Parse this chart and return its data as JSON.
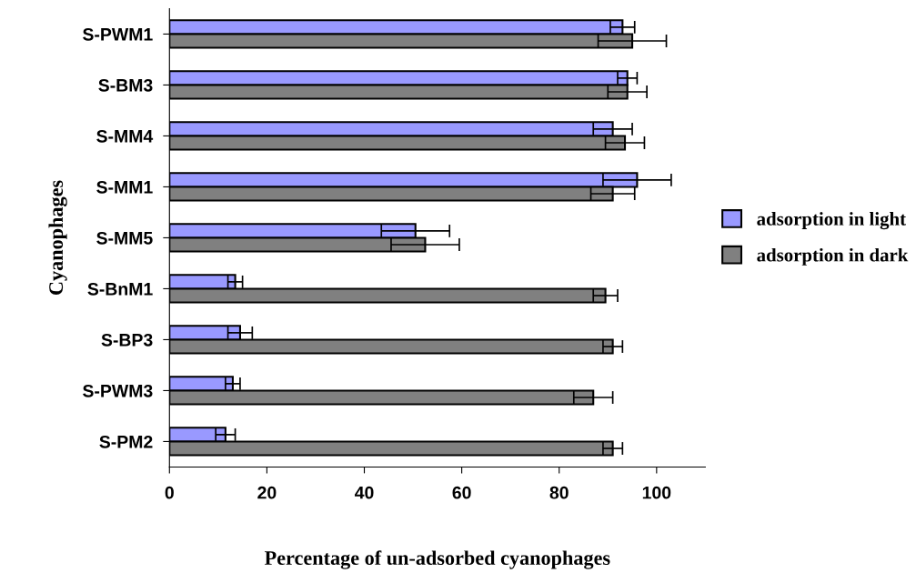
{
  "chart_data": {
    "type": "bar",
    "orientation": "horizontal",
    "xlabel": "Percentage of un-adsorbed cyanophages",
    "ylabel": "Cyanophages",
    "categories": [
      "S-PWM1",
      "S-BM3",
      "S-MM4",
      "S-MM1",
      "S-MM5",
      "S-BnM1",
      "S-BP3",
      "S-PWM3",
      "S-PM2"
    ],
    "series": [
      {
        "name": "adsorption in light",
        "color": "#9999ff",
        "values": [
          93,
          94,
          91,
          96,
          50.5,
          13.5,
          14.5,
          13,
          11.5
        ],
        "errors": [
          2.5,
          2,
          4,
          7,
          7,
          1.5,
          2.5,
          1.5,
          2
        ]
      },
      {
        "name": "adsorption in dark",
        "color": "#808080",
        "values": [
          95,
          94,
          93.5,
          91,
          52.5,
          89.5,
          91,
          87,
          91
        ],
        "errors": [
          7,
          4,
          4,
          4.5,
          7,
          2.5,
          2,
          4,
          2
        ]
      }
    ],
    "xlim": [
      0,
      110
    ],
    "xticks": [
      0,
      20,
      40,
      60,
      80,
      100
    ],
    "grid": false,
    "legend": "right"
  }
}
